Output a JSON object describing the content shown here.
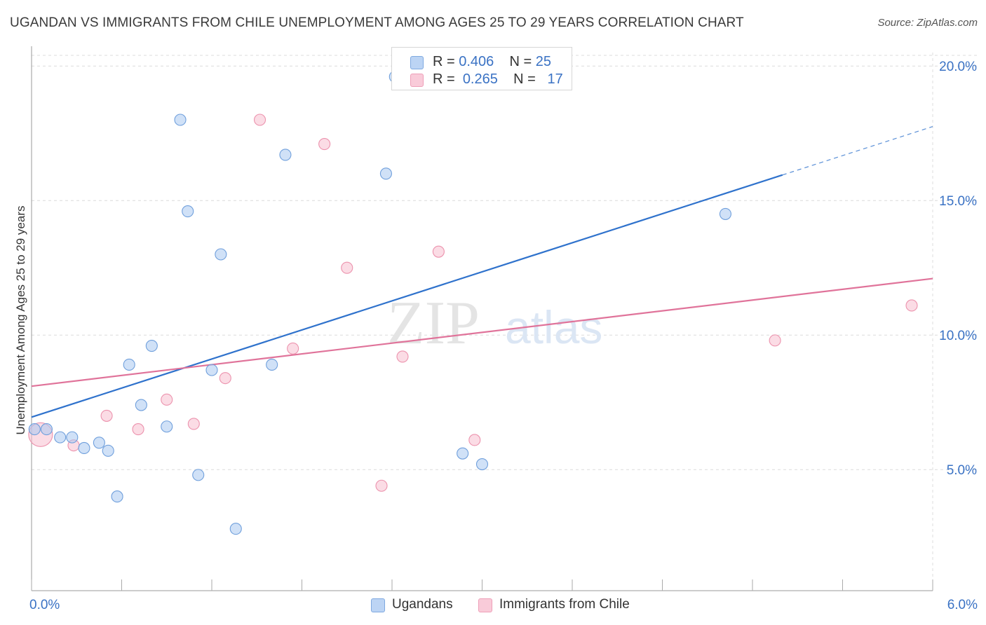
{
  "chart_data": {
    "type": "scatter",
    "title": "UGANDAN VS IMMIGRANTS FROM CHILE UNEMPLOYMENT AMONG AGES 25 TO 29 YEARS CORRELATION CHART",
    "source": "Source: ZipAtlas.com",
    "watermark": {
      "zip": "ZIP",
      "atlas": "atlas"
    },
    "xlabel": "",
    "ylabel": "Unemployment Among Ages 25 to 29 years",
    "xlim": [
      0,
      6
    ],
    "ylim": [
      0.5,
      20.5
    ],
    "x_tick_labels": {
      "left": "0.0%",
      "right": "6.0%"
    },
    "y_ticks": [
      {
        "value": 5,
        "label": "5.0%"
      },
      {
        "value": 10,
        "label": "10.0%"
      },
      {
        "value": 15,
        "label": "15.0%"
      },
      {
        "value": 20,
        "label": "20.0%"
      }
    ],
    "grid": true,
    "series": [
      {
        "name": "Ugandans",
        "color": "#a9c8f0",
        "stroke": "#6f9fdc",
        "line_color": "#2f72cc",
        "R": "0.406",
        "N": "25",
        "points": [
          [
            0.02,
            6.5
          ],
          [
            0.1,
            6.5
          ],
          [
            0.19,
            6.2
          ],
          [
            0.27,
            6.2
          ],
          [
            0.35,
            5.8
          ],
          [
            0.45,
            6.0
          ],
          [
            0.51,
            5.7
          ],
          [
            0.57,
            4.0
          ],
          [
            0.65,
            8.9
          ],
          [
            0.73,
            7.4
          ],
          [
            0.8,
            9.6
          ],
          [
            0.9,
            6.6
          ],
          [
            0.99,
            18.0
          ],
          [
            1.04,
            14.6
          ],
          [
            1.11,
            4.8
          ],
          [
            1.2,
            8.7
          ],
          [
            1.26,
            13.0
          ],
          [
            1.36,
            2.8
          ],
          [
            1.6,
            8.9
          ],
          [
            1.69,
            16.7
          ],
          [
            2.36,
            16.0
          ],
          [
            2.42,
            19.6
          ],
          [
            2.87,
            5.6
          ],
          [
            3.0,
            5.2
          ],
          [
            4.62,
            14.5
          ]
        ],
        "trend": {
          "x0": 0.0,
          "y0": 6.95,
          "x1": 5.0,
          "y1": 15.95,
          "dash_to_x": 6.0,
          "dash_to_y": 17.75
        }
      },
      {
        "name": "Immigrants from Chile",
        "color": "#f7bfd0",
        "stroke": "#ec92ad",
        "line_color": "#e0739a",
        "R": "0.265",
        "N": "17",
        "points": [
          [
            0.06,
            6.3
          ],
          [
            0.28,
            5.9
          ],
          [
            0.5,
            7.0
          ],
          [
            0.71,
            6.5
          ],
          [
            0.9,
            7.6
          ],
          [
            1.08,
            6.7
          ],
          [
            1.29,
            8.4
          ],
          [
            1.52,
            18.0
          ],
          [
            1.74,
            9.5
          ],
          [
            1.95,
            17.1
          ],
          [
            2.1,
            12.5
          ],
          [
            2.33,
            4.4
          ],
          [
            2.47,
            9.2
          ],
          [
            2.71,
            13.1
          ],
          [
            2.95,
            6.1
          ],
          [
            4.95,
            9.8
          ],
          [
            5.86,
            11.1
          ]
        ],
        "trend": {
          "x0": 0.0,
          "y0": 8.1,
          "x1": 6.0,
          "y1": 12.1
        }
      }
    ],
    "legend": {
      "r_label": "R =",
      "n_label": "N ="
    }
  }
}
